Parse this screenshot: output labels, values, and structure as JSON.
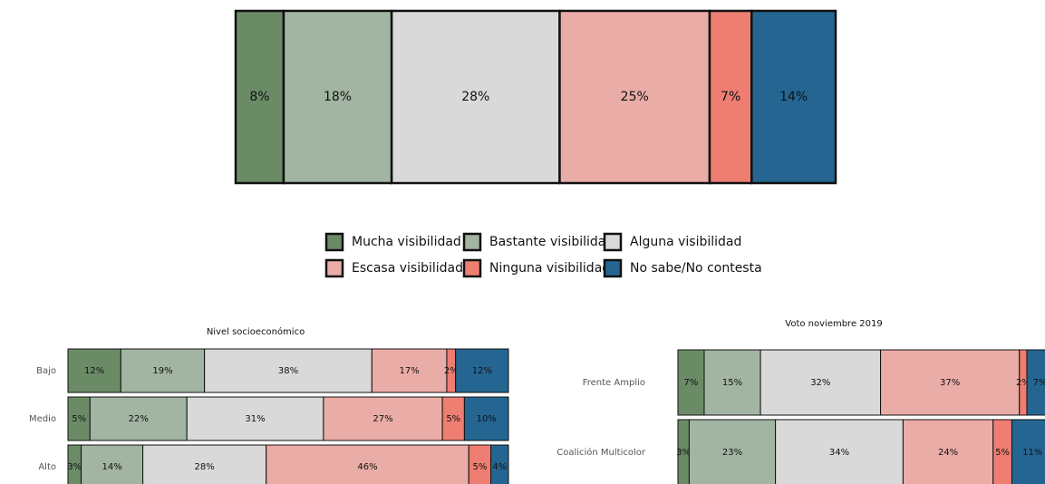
{
  "chart_data": [
    {
      "type": "stacked-bar-horizontal",
      "xlim": [
        0,
        100
      ],
      "legend": "bottom",
      "series": [
        {
          "name": "Mucha visibilidad",
          "color": "#6b8b67",
          "values": [
            8
          ],
          "value_labels": [
            "8%"
          ]
        },
        {
          "name": "Bastante visibilidad",
          "color": "#a2b4a2",
          "values": [
            18
          ],
          "value_labels": [
            "18%"
          ]
        },
        {
          "name": "Alguna visibilidad",
          "color": "#d9d9d9",
          "values": [
            28
          ],
          "value_labels": [
            "28%"
          ]
        },
        {
          "name": "Escasa visibilidad",
          "color": "#eaaca7",
          "values": [
            25
          ],
          "value_labels": [
            "25%"
          ]
        },
        {
          "name": "Ninguna visibilidad",
          "color": "#ee7d72",
          "values": [
            7
          ],
          "value_labels": [
            "7%"
          ]
        },
        {
          "name": "No sabe/No contesta",
          "color": "#256591",
          "values": [
            14
          ],
          "value_labels": [
            "14%"
          ]
        }
      ]
    },
    {
      "type": "stacked-bar-horizontal",
      "title": "Nivel socioeconómico",
      "xlim": [
        0,
        100
      ],
      "categories": [
        "Bajo",
        "Medio",
        "Alto"
      ],
      "series": [
        {
          "color": "#6b8b67",
          "values": [
            12,
            5,
            3
          ],
          "value_labels": [
            "12%",
            "5%",
            "3%"
          ]
        },
        {
          "color": "#a2b4a2",
          "values": [
            19,
            22,
            14
          ],
          "value_labels": [
            "19%",
            "22%",
            "14%"
          ]
        },
        {
          "color": "#d9d9d9",
          "values": [
            38,
            31,
            28
          ],
          "value_labels": [
            "38%",
            "31%",
            "28%"
          ]
        },
        {
          "color": "#eaaca7",
          "values": [
            17,
            27,
            46
          ],
          "value_labels": [
            "17%",
            "27%",
            "46%"
          ]
        },
        {
          "color": "#ee7d72",
          "values": [
            2,
            5,
            5
          ],
          "value_labels": [
            "2%",
            "5%",
            "5%"
          ]
        },
        {
          "color": "#256591",
          "values": [
            12,
            10,
            4
          ],
          "value_labels": [
            "12%",
            "10%",
            "4%"
          ]
        }
      ]
    },
    {
      "type": "stacked-bar-horizontal",
      "title": "Voto noviembre 2019",
      "xlim": [
        0,
        100
      ],
      "categories": [
        "Frente Amplio",
        "Coalición Multicolor"
      ],
      "series": [
        {
          "color": "#6b8b67",
          "values": [
            7,
            3
          ],
          "value_labels": [
            "7%",
            "3%"
          ]
        },
        {
          "color": "#a2b4a2",
          "values": [
            15,
            23
          ],
          "value_labels": [
            "15%",
            "23%"
          ]
        },
        {
          "color": "#d9d9d9",
          "values": [
            32,
            34
          ],
          "value_labels": [
            "32%",
            "34%"
          ]
        },
        {
          "color": "#eaaca7",
          "values": [
            37,
            24
          ],
          "value_labels": [
            "37%",
            "24%"
          ]
        },
        {
          "color": "#ee7d72",
          "values": [
            2,
            5
          ],
          "value_labels": [
            "2%",
            "5%"
          ]
        },
        {
          "color": "#256591",
          "values": [
            7,
            11
          ],
          "value_labels": [
            "7%",
            "11%"
          ]
        }
      ]
    }
  ]
}
